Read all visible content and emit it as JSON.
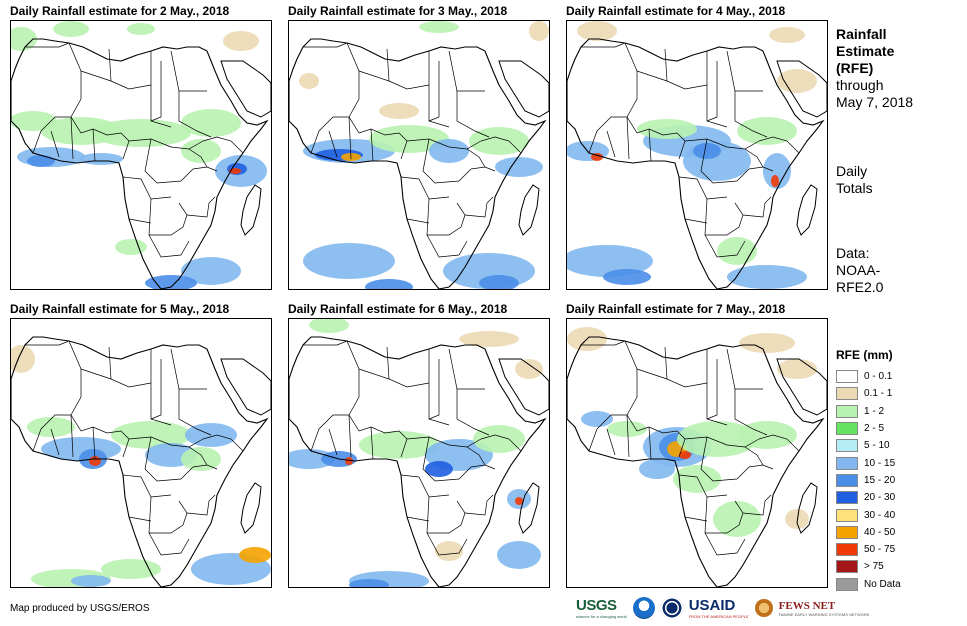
{
  "panels": [
    {
      "title": "Daily Rainfall estimate for 2 May., 2018"
    },
    {
      "title": "Daily Rainfall estimate for 3 May., 2018"
    },
    {
      "title": "Daily Rainfall estimate for 4 May., 2018"
    },
    {
      "title": "Daily Rainfall estimate for 5 May., 2018"
    },
    {
      "title": "Daily Rainfall estimate for 6 May., 2018"
    },
    {
      "title": "Daily Rainfall estimate for 7 May., 2018"
    }
  ],
  "side": {
    "title_line1": "Rainfall",
    "title_line2": "Estimate",
    "title_line3": "(RFE)",
    "through": "through",
    "date": "May 7, 2018",
    "daily1": "Daily",
    "daily2": "Totals",
    "data1": "Data:",
    "data2": "NOAA-",
    "data3": "RFE2.0"
  },
  "legend": {
    "title": "RFE (mm)",
    "items": [
      {
        "label": "0 - 0.1",
        "color": "#ffffff"
      },
      {
        "label": "0.1 - 1",
        "color": "#ecd9b4"
      },
      {
        "label": "1 - 2",
        "color": "#b8f2b0"
      },
      {
        "label": "2 - 5",
        "color": "#63e35f"
      },
      {
        "label": "5 - 10",
        "color": "#b6ecf6"
      },
      {
        "label": "10 - 15",
        "color": "#82b8ef"
      },
      {
        "label": "15 - 20",
        "color": "#4a8ee8"
      },
      {
        "label": "20 - 30",
        "color": "#1f5fe0"
      },
      {
        "label": "30 - 40",
        "color": "#fde27a"
      },
      {
        "label": "40 - 50",
        "color": "#f5a300"
      },
      {
        "label": "50 - 75",
        "color": "#ef3a06"
      },
      {
        "label": "> 75",
        "color": "#a31616"
      },
      {
        "label": "No Data",
        "color": "#9a9a9a"
      }
    ]
  },
  "credit": "Map produced by USGS/EROS",
  "logos": {
    "usgs": "USGS",
    "usgs_tag": "science for a changing world",
    "usaid": "USAID",
    "usaid_tag": "FROM THE AMERICAN PEOPLE",
    "fews": "FEWS NET",
    "fews_tag": "FAMINE EARLY WARNING SYSTEMS NETWORK"
  }
}
